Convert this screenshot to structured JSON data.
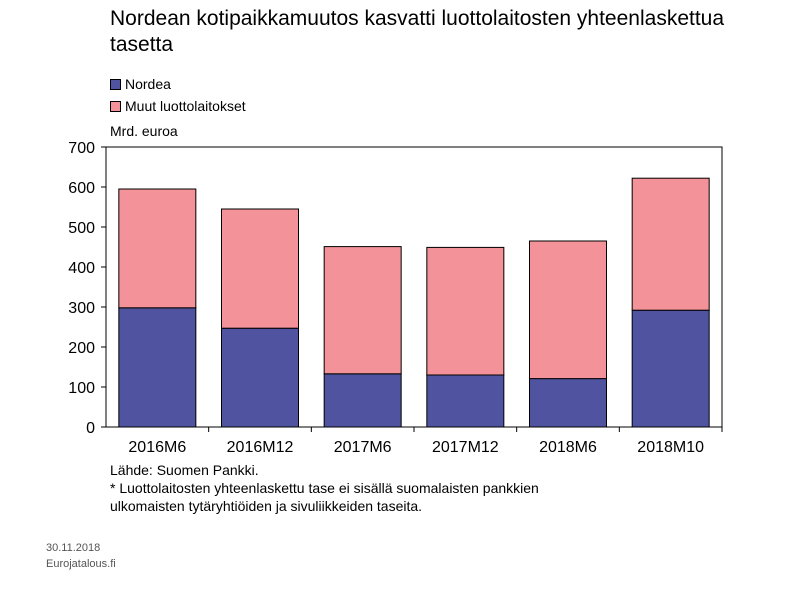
{
  "chart_data": {
    "type": "bar",
    "stacked": true,
    "title": "Nordean kotipaikkamuutos kasvatti luottolaitosten yhteenlaskettua tasetta",
    "ylabel": "Mrd. euroa",
    "categories": [
      "2016M6",
      "2016M12",
      "2017M6",
      "2017M12",
      "2018M6",
      "2018M10"
    ],
    "series": [
      {
        "name": "Nordea",
        "values": [
          298,
          247,
          133,
          130,
          121,
          292
        ],
        "color": "#4f53a0"
      },
      {
        "name": "Muut luottolaitokset",
        "values": [
          297,
          298,
          318,
          319,
          344,
          330
        ],
        "color": "#f39298"
      }
    ],
    "ylim": [
      0,
      700
    ],
    "yticks": [
      0,
      100,
      200,
      300,
      400,
      500,
      600,
      700
    ],
    "grid": false,
    "legend": "top-left"
  },
  "footnotes": {
    "source": "Lähde: Suomen Pankki.",
    "note_line1": "* Luottolaitosten yhteenlaskettu tase ei sisällä suomalaisten pankkien",
    "note_line2": "ulkomaisten tytäryhtiöiden ja sivuliikkeiden taseita."
  },
  "meta": {
    "date": "30.11.2018",
    "site": "Eurojatalous.fi"
  }
}
